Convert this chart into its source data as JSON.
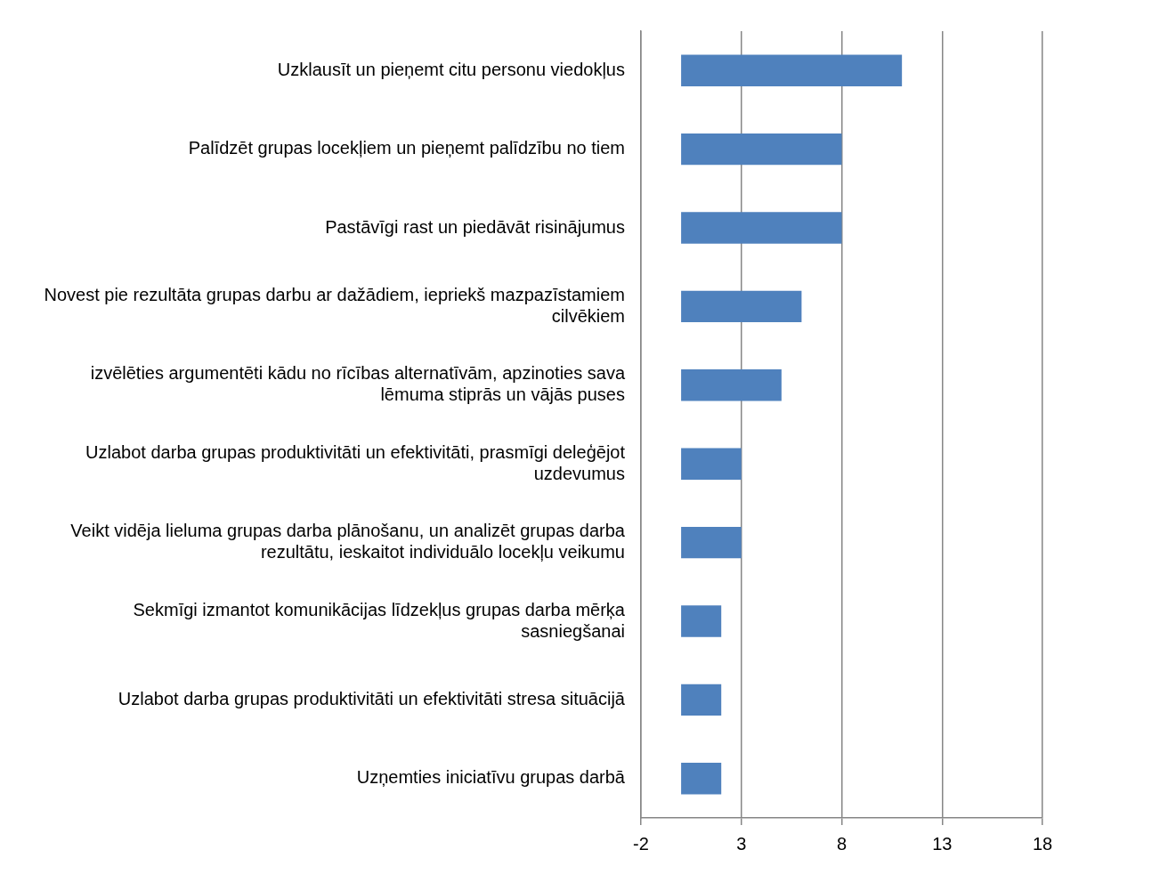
{
  "chart_data": {
    "type": "bar",
    "orientation": "horizontal",
    "categories": [
      "Uzklausīt un pieņemt citu personu viedokļus",
      "Palīdzēt grupas locekļiem un pieņemt palīdzību no tiem",
      "Pastāvīgi rast un piedāvāt risinājumus",
      "Novest pie rezultāta grupas darbu ar dažādiem, iepriekš mazpazīstamiem cilvēkiem",
      "izvēlēties argumentēti kādu no rīcības alternatīvām, apzinoties sava lēmuma stiprās un vājās puses",
      "Uzlabot darba grupas produktivitāti un efektivitāti, prasmīgi deleģējot uzdevumus",
      "Veikt vidēja lieluma grupas darba plānošanu, un analizēt grupas darba rezultātu, ieskaitot individuālo locekļu veikumu",
      "Sekmīgi izmantot komunikācijas līdzekļus grupas darba mērķa sasniegšanai",
      "Uzlabot darba grupas produktivitāti un efektivitāti stresa situācijā",
      "Uzņemties iniciatīvu grupas darbā"
    ],
    "values": [
      11,
      8,
      8,
      6,
      5,
      3,
      3,
      2,
      2,
      2
    ],
    "color": "#4f81bd",
    "xlim": [
      -2,
      18
    ],
    "xticks": [
      -2,
      3,
      8,
      13,
      18
    ],
    "grid": "x",
    "legend": false
  }
}
